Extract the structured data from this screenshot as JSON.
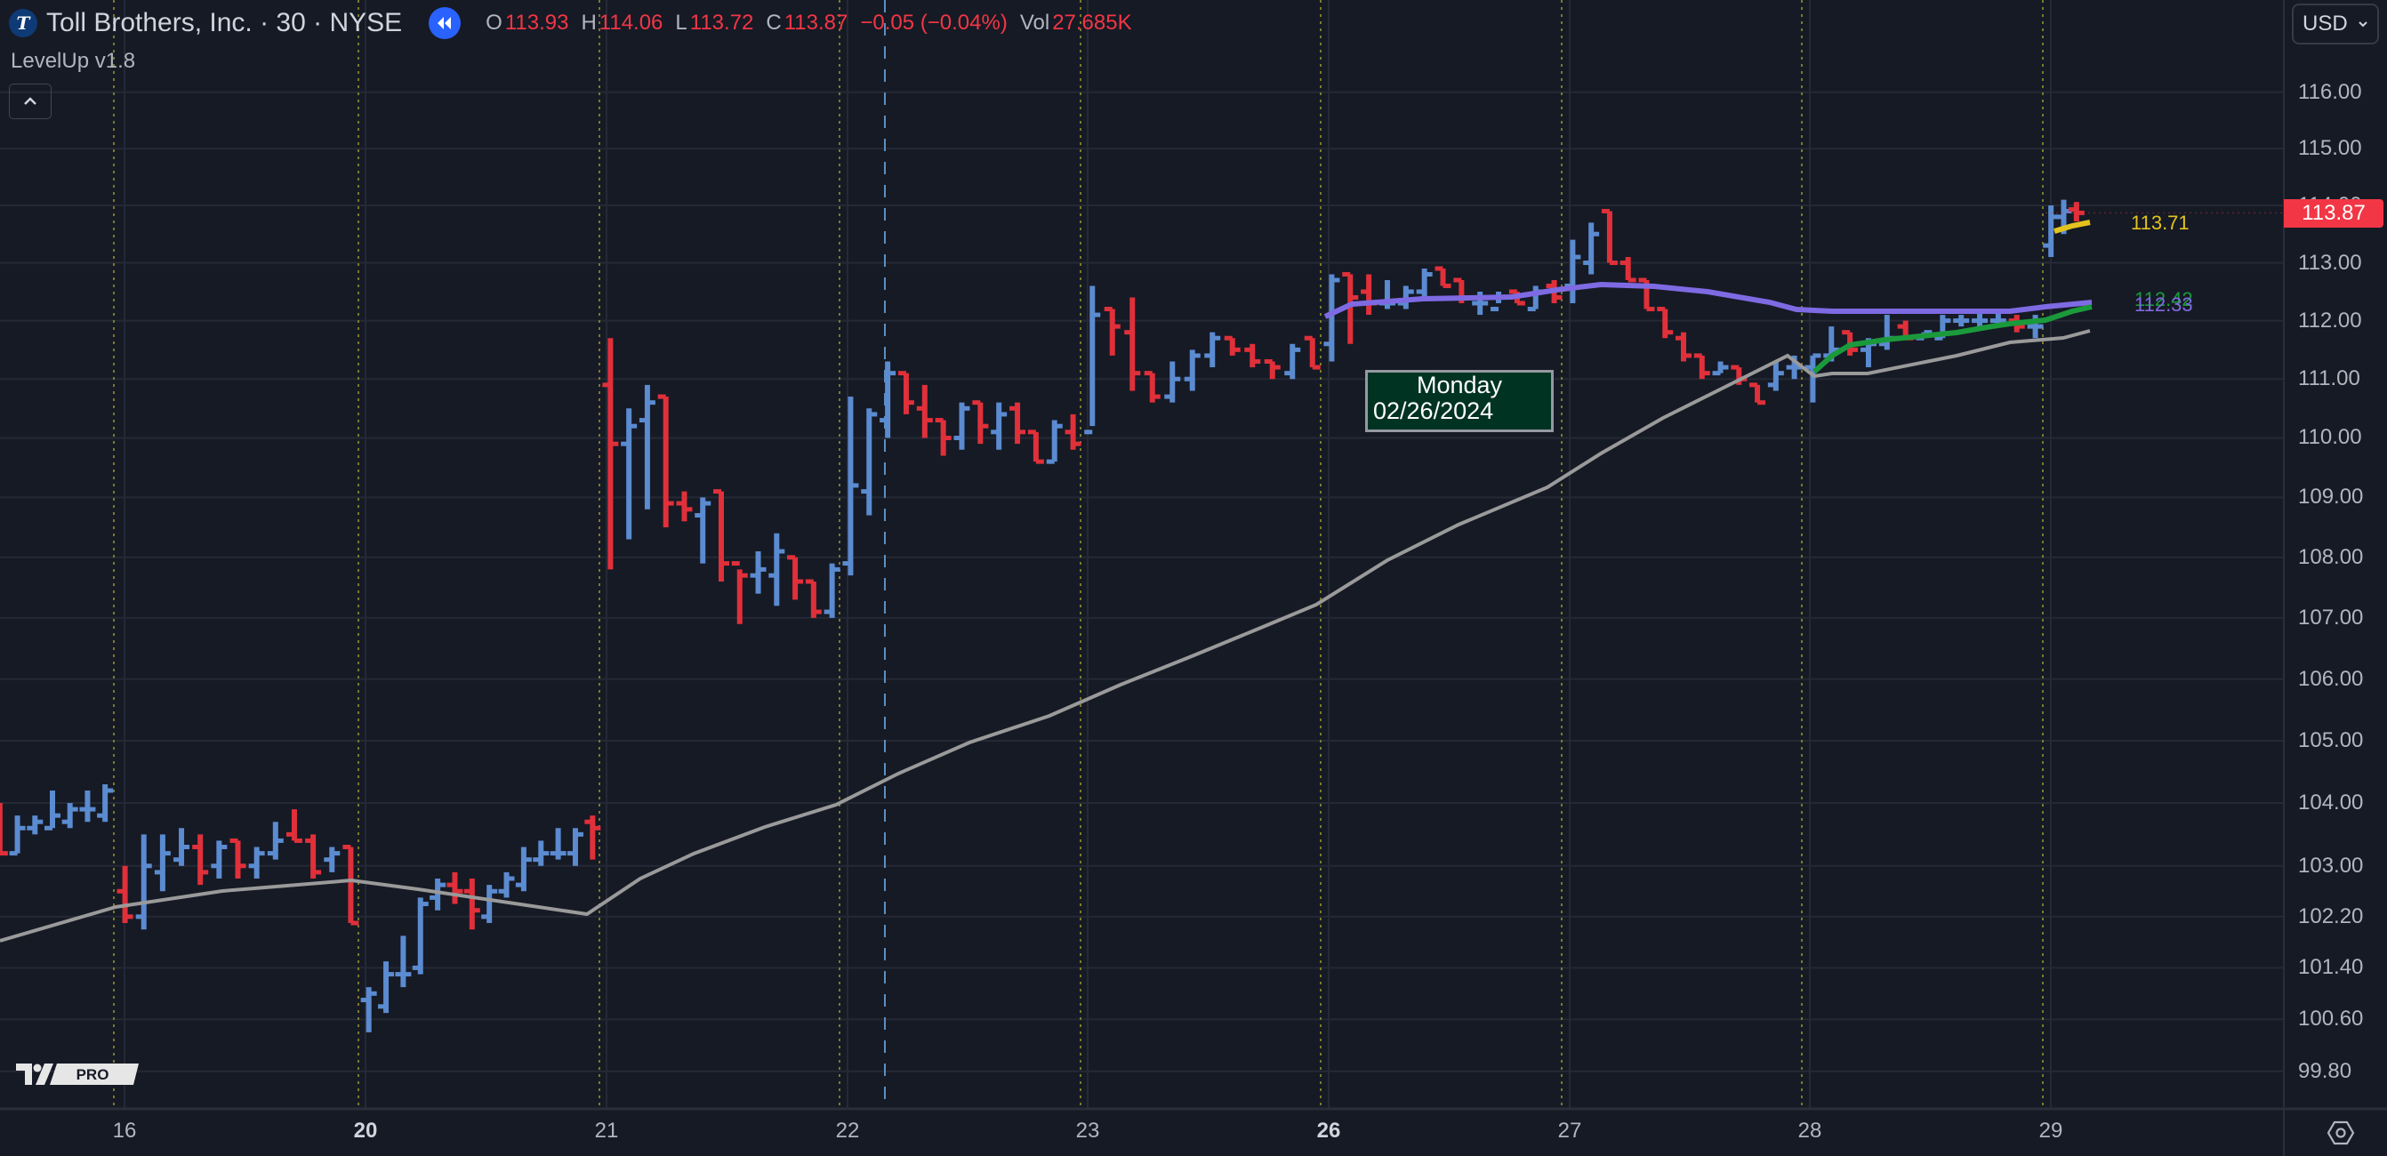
{
  "header": {
    "symbol_title": "Toll Brothers, Inc. · 30 · NYSE",
    "logo_letter": "T",
    "ohlc": {
      "open_label": "O",
      "open": "113.93",
      "high_label": "H",
      "high": "114.06",
      "low_label": "L",
      "low": "113.72",
      "close_label": "C",
      "close": "113.87",
      "change": "−0.05 (−0.04%)",
      "vol_label": "Vol",
      "vol": "27.685K"
    }
  },
  "indicator": {
    "name": "LevelUp v1.8",
    "collapse_icon": "chevron-up-icon"
  },
  "price_axis": {
    "currency": "USD",
    "ticks": [
      "116.00",
      "115.00",
      "114.00",
      "113.00",
      "112.00",
      "111.00",
      "110.00",
      "109.00",
      "108.00",
      "107.00",
      "106.00",
      "105.00",
      "104.00",
      "103.00",
      "102.20",
      "101.40",
      "100.60",
      "99.80"
    ],
    "last_price": "113.87",
    "last_price_color": "#f23645"
  },
  "series_labels": [
    {
      "value": "113.71",
      "color": "#e5c31e"
    },
    {
      "value": "112.42",
      "color": "#1b9a3b"
    },
    {
      "value": "112.33",
      "color": "#7e6ae2"
    }
  ],
  "time_axis": {
    "labels": [
      "16",
      "20",
      "21",
      "22",
      "23",
      "26",
      "27",
      "28",
      "29"
    ],
    "bold": [
      "20",
      "26"
    ]
  },
  "tooltip": {
    "day": "Monday",
    "date": "02/26/2024"
  },
  "watermark": {
    "badge": "PRO"
  },
  "colors": {
    "background": "#161a25",
    "up": "#5b8bd0",
    "down": "#e0303a",
    "ma_gray": "#9a9a9a",
    "vwap_purple": "#7e6ae2",
    "green_line": "#1b9a3b",
    "yellow_line": "#e5c31e",
    "grid": "#252935",
    "session_line": "#7a7a2a"
  },
  "chart_data": {
    "type": "ohlc",
    "title": "Toll Brothers, Inc. · 30 · NYSE",
    "xlabel": "",
    "ylabel": "USD",
    "y_scale": "log",
    "ylim": [
      99.4,
      116.6
    ],
    "x_tick_labels": [
      "16",
      "20",
      "21",
      "22",
      "23",
      "26",
      "27",
      "28",
      "29"
    ],
    "last": {
      "open": 113.93,
      "high": 114.06,
      "low": 113.72,
      "close": 113.87,
      "change": -0.05,
      "change_pct": -0.04,
      "volume": "27.685K"
    },
    "bars": [
      [
        103.5,
        104.0,
        103.2,
        103.2
      ],
      [
        103.2,
        103.8,
        103.2,
        103.6
      ],
      [
        103.6,
        103.8,
        103.5,
        103.7
      ],
      [
        103.6,
        104.2,
        103.6,
        103.8
      ],
      [
        103.7,
        104.0,
        103.6,
        103.9
      ],
      [
        103.9,
        104.2,
        103.7,
        103.9
      ],
      [
        103.8,
        104.3,
        103.7,
        104.2
      ],
      [
        102.6,
        103.0,
        102.1,
        102.2
      ],
      [
        102.2,
        103.5,
        102.0,
        103.0
      ],
      [
        102.9,
        103.5,
        102.6,
        103.2
      ],
      [
        103.1,
        103.6,
        103.0,
        103.3
      ],
      [
        103.3,
        103.5,
        102.7,
        102.9
      ],
      [
        103.0,
        103.4,
        102.8,
        103.3
      ],
      [
        103.4,
        103.4,
        102.8,
        103.0
      ],
      [
        103.0,
        103.3,
        102.8,
        103.2
      ],
      [
        103.2,
        103.7,
        103.1,
        103.4
      ],
      [
        103.5,
        103.9,
        103.4,
        103.4
      ],
      [
        103.4,
        103.5,
        102.8,
        102.9
      ],
      [
        103.1,
        103.3,
        102.9,
        103.2
      ],
      [
        103.3,
        103.3,
        102.1,
        102.1
      ],
      [
        100.9,
        101.1,
        100.4,
        101.0
      ],
      [
        100.8,
        101.5,
        100.7,
        101.3
      ],
      [
        101.3,
        101.9,
        101.1,
        101.3
      ],
      [
        101.4,
        102.5,
        101.3,
        102.4
      ],
      [
        102.5,
        102.8,
        102.3,
        102.7
      ],
      [
        102.7,
        102.9,
        102.4,
        102.6
      ],
      [
        102.6,
        102.8,
        102.0,
        102.3
      ],
      [
        102.2,
        102.7,
        102.1,
        102.6
      ],
      [
        102.6,
        102.9,
        102.5,
        102.8
      ],
      [
        102.7,
        103.3,
        102.6,
        103.1
      ],
      [
        103.1,
        103.4,
        103.0,
        103.2
      ],
      [
        103.2,
        103.6,
        103.1,
        103.2
      ],
      [
        103.2,
        103.6,
        103.0,
        103.5
      ],
      [
        103.7,
        103.8,
        103.1,
        103.6
      ],
      [
        110.9,
        111.7,
        107.8,
        109.9
      ],
      [
        109.9,
        110.5,
        108.3,
        110.2
      ],
      [
        110.3,
        110.9,
        108.8,
        110.6
      ],
      [
        110.7,
        110.7,
        108.5,
        108.9
      ],
      [
        108.9,
        109.1,
        108.6,
        108.8
      ],
      [
        108.7,
        109.0,
        107.9,
        108.9
      ],
      [
        109.1,
        109.1,
        107.6,
        107.9
      ],
      [
        107.9,
        107.8,
        106.9,
        107.7
      ],
      [
        107.7,
        108.1,
        107.4,
        107.8
      ],
      [
        107.7,
        108.4,
        107.2,
        108.1
      ],
      [
        108.0,
        108.0,
        107.3,
        107.6
      ],
      [
        107.6,
        107.6,
        107.0,
        107.1
      ],
      [
        107.1,
        107.9,
        107.0,
        107.8
      ],
      [
        107.9,
        110.7,
        107.7,
        109.2
      ],
      [
        109.1,
        110.5,
        108.7,
        110.4
      ],
      [
        110.3,
        111.3,
        110.0,
        111.1
      ],
      [
        111.1,
        111.1,
        110.4,
        110.6
      ],
      [
        110.5,
        110.9,
        110.0,
        110.3
      ],
      [
        110.3,
        110.3,
        109.7,
        110.0
      ],
      [
        110.0,
        110.6,
        109.8,
        110.5
      ],
      [
        110.6,
        110.6,
        109.9,
        110.2
      ],
      [
        110.1,
        110.6,
        109.8,
        110.4
      ],
      [
        110.5,
        110.6,
        109.9,
        110.1
      ],
      [
        110.1,
        110.1,
        109.6,
        109.6
      ],
      [
        109.6,
        110.3,
        109.6,
        110.2
      ],
      [
        110.1,
        110.4,
        109.8,
        109.9
      ],
      [
        110.1,
        112.6,
        110.2,
        112.1
      ],
      [
        112.2,
        112.2,
        111.4,
        111.9
      ],
      [
        111.8,
        112.4,
        110.8,
        111.1
      ],
      [
        111.1,
        111.1,
        110.6,
        110.7
      ],
      [
        110.7,
        111.3,
        110.6,
        111.0
      ],
      [
        111.0,
        111.5,
        110.8,
        111.4
      ],
      [
        111.4,
        111.8,
        111.2,
        111.7
      ],
      [
        111.7,
        111.7,
        111.4,
        111.5
      ],
      [
        111.5,
        111.6,
        111.2,
        111.3
      ],
      [
        111.3,
        111.3,
        111.0,
        111.2
      ],
      [
        111.1,
        111.6,
        111.0,
        111.5
      ],
      [
        111.7,
        111.7,
        111.2,
        111.2
      ],
      [
        111.6,
        112.8,
        111.3,
        112.7
      ],
      [
        112.8,
        112.8,
        111.6,
        112.4
      ],
      [
        112.5,
        112.8,
        112.1,
        112.3
      ],
      [
        112.3,
        112.7,
        112.2,
        112.3
      ],
      [
        112.3,
        112.6,
        112.2,
        112.5
      ],
      [
        112.5,
        112.9,
        112.4,
        112.8
      ],
      [
        112.9,
        112.9,
        112.6,
        112.6
      ],
      [
        112.7,
        112.7,
        112.3,
        112.4
      ],
      [
        112.3,
        112.5,
        112.1,
        112.3
      ],
      [
        112.2,
        112.5,
        112.3,
        112.4
      ],
      [
        112.5,
        112.5,
        112.3,
        112.3
      ],
      [
        112.2,
        112.6,
        112.2,
        112.5
      ],
      [
        112.6,
        112.7,
        112.3,
        112.4
      ],
      [
        112.6,
        113.4,
        112.3,
        113.1
      ],
      [
        113.0,
        113.7,
        112.8,
        113.5
      ],
      [
        113.9,
        113.9,
        113.0,
        113.0
      ],
      [
        113.0,
        113.1,
        112.7,
        112.7
      ],
      [
        112.7,
        112.7,
        112.2,
        112.2
      ],
      [
        112.2,
        112.2,
        111.7,
        111.8
      ],
      [
        111.7,
        111.8,
        111.3,
        111.4
      ],
      [
        111.4,
        111.4,
        111.0,
        111.1
      ],
      [
        111.1,
        111.3,
        111.1,
        111.2
      ],
      [
        111.2,
        111.2,
        110.9,
        111.0
      ],
      [
        110.9,
        110.9,
        110.6,
        110.6
      ],
      [
        110.9,
        111.3,
        110.8,
        111.1
      ],
      [
        111.2,
        111.4,
        111.0,
        111.2
      ],
      [
        111.2,
        111.4,
        110.6,
        111.4
      ],
      [
        111.4,
        111.9,
        111.3,
        111.5
      ],
      [
        111.8,
        111.8,
        111.4,
        111.5
      ],
      [
        111.5,
        111.7,
        111.2,
        111.6
      ],
      [
        111.6,
        112.1,
        111.5,
        111.7
      ],
      [
        111.9,
        112.0,
        111.7,
        111.7
      ],
      [
        111.7,
        111.8,
        111.7,
        111.8
      ],
      [
        111.7,
        112.1,
        111.7,
        112.0
      ],
      [
        112.0,
        112.1,
        111.9,
        112.0
      ],
      [
        112.0,
        112.2,
        111.9,
        112.0
      ],
      [
        112.0,
        112.2,
        111.9,
        112.0
      ],
      [
        112.0,
        112.1,
        111.8,
        111.9
      ],
      [
        111.9,
        112.1,
        111.7,
        111.9
      ],
      [
        113.3,
        114.0,
        113.1,
        113.8
      ],
      [
        113.8,
        114.1,
        113.5,
        113.9
      ],
      [
        113.93,
        114.06,
        113.72,
        113.87
      ]
    ],
    "bar_day_start_index": [
      0,
      7,
      20,
      34,
      47,
      60,
      72,
      85,
      98,
      111
    ],
    "series": [
      {
        "name": "MA (gray)",
        "color": "#9a9a9a"
      },
      {
        "name": "VWAP (purple)",
        "color": "#7e6ae2",
        "last": 112.33
      },
      {
        "name": "Green line",
        "color": "#1b9a3b",
        "last": 112.42
      },
      {
        "name": "Yellow line",
        "color": "#e5c31e",
        "last": 113.71
      }
    ]
  }
}
